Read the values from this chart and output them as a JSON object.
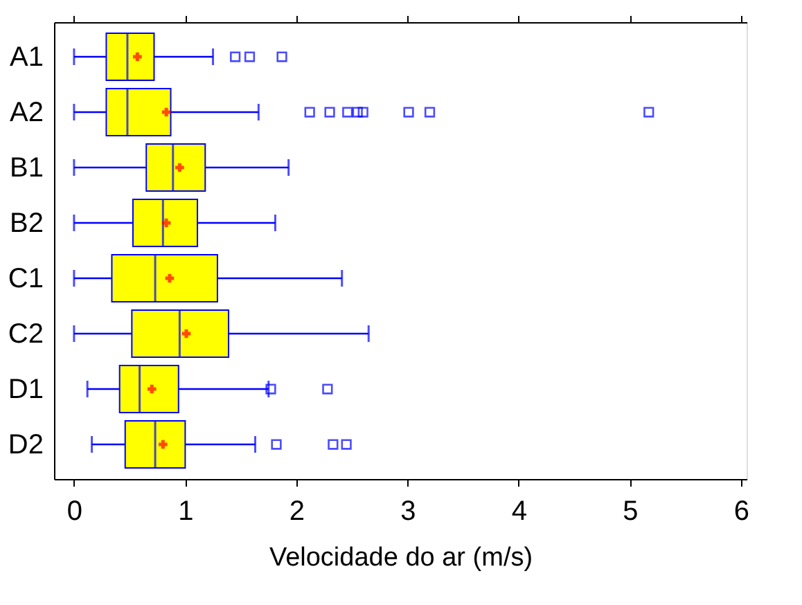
{
  "chart_data": {
    "type": "box",
    "orientation": "horizontal",
    "xlabel": "Velocidade do ar (m/s)",
    "categories": [
      "A1",
      "A2",
      "B1",
      "B2",
      "C1",
      "C2",
      "D1",
      "D2"
    ],
    "xlim": [
      -0.18,
      6.05
    ],
    "xticks": [
      0,
      1,
      2,
      3,
      4,
      5,
      6
    ],
    "grid": false,
    "marker": "square",
    "series": [
      {
        "color": "#ffff00",
        "boxes": [
          {
            "low": 0,
            "q1": 0.29,
            "median": 0.48,
            "q3": 0.72,
            "high": 1.25,
            "mean": 0.57,
            "outliers": [
              1.45,
              1.58,
              1.87
            ]
          },
          {
            "low": 0,
            "q1": 0.29,
            "median": 0.48,
            "q3": 0.87,
            "high": 1.66,
            "mean": 0.83,
            "outliers": [
              2.12,
              2.3,
              2.46,
              2.55,
              2.6,
              3.01,
              3.2,
              5.17
            ]
          },
          {
            "low": 0,
            "q1": 0.65,
            "median": 0.89,
            "q3": 1.18,
            "high": 1.93,
            "mean": 0.95
          },
          {
            "low": 0,
            "q1": 0.53,
            "median": 0.8,
            "q3": 1.11,
            "high": 1.81,
            "mean": 0.83
          },
          {
            "low": 0,
            "q1": 0.34,
            "median": 0.73,
            "q3": 1.29,
            "high": 2.41,
            "mean": 0.86
          },
          {
            "low": 0,
            "q1": 0.52,
            "median": 0.95,
            "q3": 1.39,
            "high": 2.65,
            "mean": 1.01
          },
          {
            "low": 0.12,
            "q1": 0.41,
            "median": 0.59,
            "q3": 0.94,
            "high": 1.75,
            "mean": 0.7,
            "outliers": [
              1.77,
              2.28
            ]
          },
          {
            "low": 0.16,
            "q1": 0.46,
            "median": 0.73,
            "q3": 1.0,
            "high": 1.63,
            "mean": 0.8,
            "outliers": [
              1.82,
              2.33,
              2.45
            ]
          }
        ]
      }
    ]
  }
}
